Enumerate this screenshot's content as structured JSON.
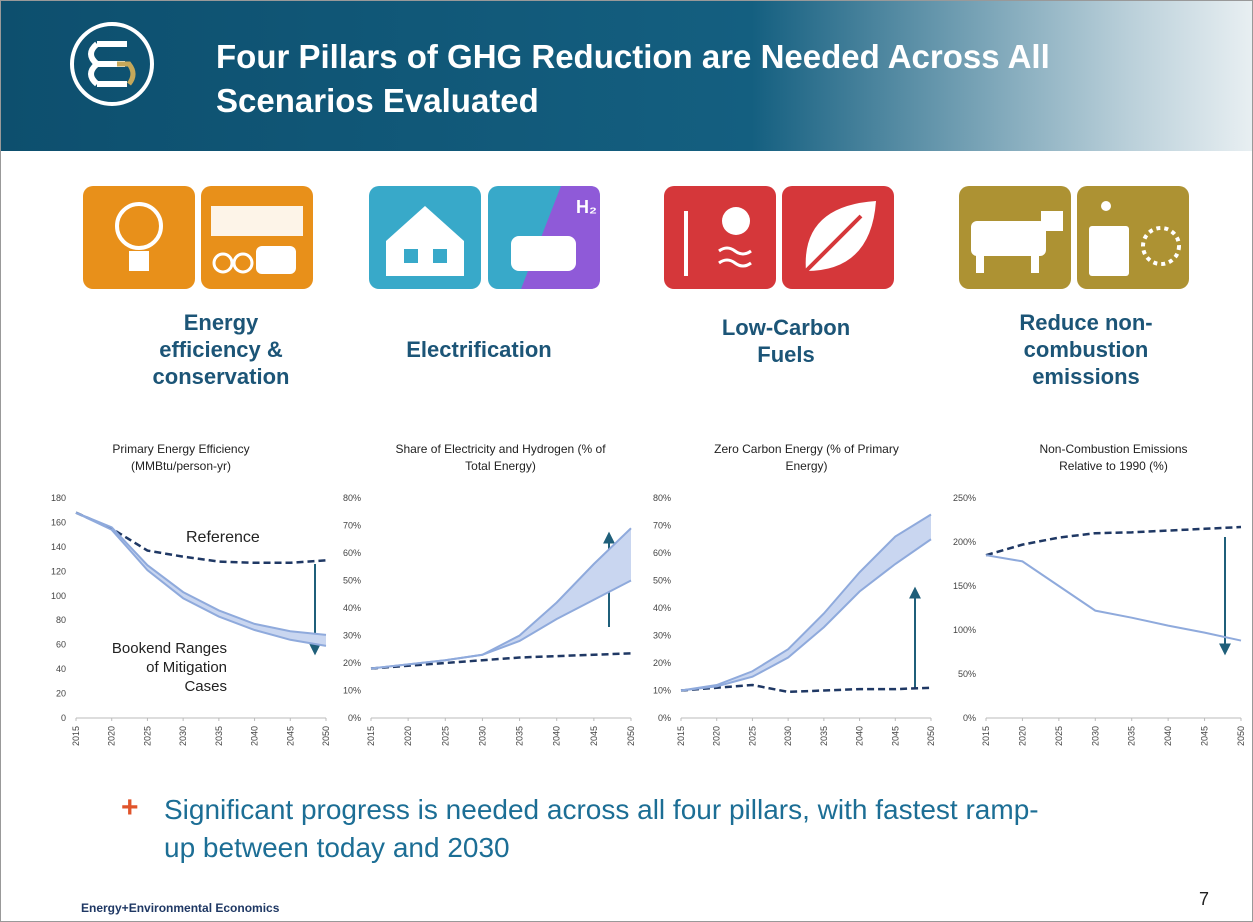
{
  "header": {
    "title": "Four Pillars of GHG Reduction are Needed Across All Scenarios Evaluated"
  },
  "pillars": [
    {
      "label": "Energy efficiency & conservation"
    },
    {
      "label": "Electrification"
    },
    {
      "label": "Low-Carbon Fuels"
    },
    {
      "label": "Reduce non-combustion emissions"
    }
  ],
  "chart_data": [
    {
      "type": "line",
      "title": "Primary Energy Efficiency (MMBtu/person-yr)",
      "x": [
        2015,
        2020,
        2025,
        2030,
        2035,
        2040,
        2045,
        2050
      ],
      "xlim": [
        2015,
        2050
      ],
      "xticks": [
        2015,
        2020,
        2025,
        2030,
        2035,
        2040,
        2045,
        2050
      ],
      "ylim": [
        0,
        180
      ],
      "yticks": [
        0,
        20,
        40,
        60,
        80,
        100,
        120,
        140,
        160,
        180
      ],
      "series": [
        {
          "color": "#1f3864",
          "dashed": true,
          "values": [
            168,
            155,
            137,
            132,
            128,
            127,
            127,
            129
          ]
        },
        {
          "color": "#8faadc",
          "fill": "#c9d6f0",
          "values": [
            168,
            156,
            125,
            103,
            88,
            77,
            71,
            68
          ]
        },
        {
          "color": "#8faadc",
          "values": [
            168,
            154,
            121,
            98,
            83,
            72,
            64,
            59
          ]
        }
      ],
      "annotations": [
        "Reference",
        "Bookend Ranges of Mitigation Cases"
      ]
    },
    {
      "type": "line",
      "title": "Share of Electricity and Hydrogen (% of Total Energy)",
      "x": [
        2015,
        2020,
        2025,
        2030,
        2035,
        2040,
        2045,
        2050
      ],
      "xlim": [
        2015,
        2050
      ],
      "xticks": [
        2015,
        2020,
        2025,
        2030,
        2035,
        2040,
        2045,
        2050
      ],
      "ylim": [
        0,
        80
      ],
      "yticks": [
        {
          "value": 0,
          "label": "0%"
        },
        {
          "value": 10,
          "label": "10%"
        },
        {
          "value": 20,
          "label": "20%"
        },
        {
          "value": 30,
          "label": "30%"
        },
        {
          "value": 40,
          "label": "40%"
        },
        {
          "value": 50,
          "label": "50%"
        },
        {
          "value": 60,
          "label": "60%"
        },
        {
          "value": 70,
          "label": "70%"
        },
        {
          "value": 80,
          "label": "80%"
        }
      ],
      "series": [
        {
          "color": "#1f3864",
          "dashed": true,
          "values": [
            18,
            19,
            20,
            21,
            22,
            22.5,
            23,
            23.5
          ]
        },
        {
          "color": "#8faadc",
          "fill": "#c9d6f0",
          "values": [
            18,
            19.5,
            21,
            23,
            30,
            42,
            56,
            69
          ]
        },
        {
          "color": "#8faadc",
          "values": [
            18,
            19.5,
            21,
            23,
            28,
            36,
            43,
            50
          ]
        }
      ]
    },
    {
      "type": "line",
      "title": "Zero Carbon Energy (% of Primary Energy)",
      "x": [
        2015,
        2020,
        2025,
        2030,
        2035,
        2040,
        2045,
        2050
      ],
      "xlim": [
        2015,
        2050
      ],
      "xticks": [
        2015,
        2020,
        2025,
        2030,
        2035,
        2040,
        2045,
        2050
      ],
      "ylim": [
        0,
        80
      ],
      "yticks": [
        {
          "value": 0,
          "label": "0%"
        },
        {
          "value": 10,
          "label": "10%"
        },
        {
          "value": 20,
          "label": "20%"
        },
        {
          "value": 30,
          "label": "30%"
        },
        {
          "value": 40,
          "label": "40%"
        },
        {
          "value": 50,
          "label": "50%"
        },
        {
          "value": 60,
          "label": "60%"
        },
        {
          "value": 70,
          "label": "70%"
        },
        {
          "value": 80,
          "label": "80%"
        }
      ],
      "series": [
        {
          "color": "#1f3864",
          "dashed": true,
          "values": [
            10,
            11,
            12,
            9.5,
            10,
            10.5,
            10.5,
            11
          ]
        },
        {
          "color": "#8faadc",
          "fill": "#c9d6f0",
          "values": [
            10,
            12,
            17,
            25,
            38,
            53,
            66,
            74
          ]
        },
        {
          "color": "#8faadc",
          "values": [
            10,
            11.5,
            15,
            22,
            33,
            46,
            56,
            65
          ]
        }
      ]
    },
    {
      "type": "line",
      "title": "Non-Combustion Emissions Relative to 1990 (%)",
      "x": [
        2015,
        2020,
        2025,
        2030,
        2035,
        2040,
        2045,
        2050
      ],
      "xlim": [
        2015,
        2050
      ],
      "xticks": [
        2015,
        2020,
        2025,
        2030,
        2035,
        2040,
        2045,
        2050
      ],
      "ylim": [
        0,
        250
      ],
      "yticks": [
        {
          "value": 0,
          "label": "0%"
        },
        {
          "value": 50,
          "label": "50%"
        },
        {
          "value": 100,
          "label": "100%"
        },
        {
          "value": 150,
          "label": "150%"
        },
        {
          "value": 200,
          "label": "200%"
        },
        {
          "value": 250,
          "label": "250%"
        }
      ],
      "series": [
        {
          "color": "#1f3864",
          "dashed": true,
          "values": [
            185,
            197,
            205,
            210,
            211,
            213,
            215,
            217
          ]
        },
        {
          "color": "#8faadc",
          "values": [
            185,
            178,
            150,
            122,
            114,
            105,
            97,
            88
          ]
        }
      ]
    }
  ],
  "bullet": {
    "marker": "+",
    "text": "Significant progress is needed across all four pillars, with fastest ramp-up between today and 2030"
  },
  "footer": {
    "company": "Energy+Environmental Economics",
    "page_number": "7"
  }
}
